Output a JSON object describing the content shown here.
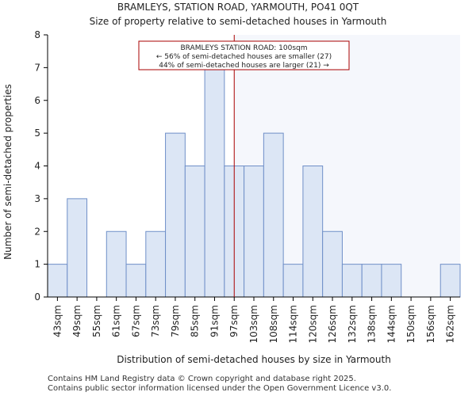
{
  "chart_data": {
    "type": "bar",
    "title": "BRAMLEYS, STATION ROAD, YARMOUTH, PO41 0QT",
    "subtitle": "Size of property relative to semi-detached houses in Yarmouth",
    "xlabel": "Distribution of semi-detached houses by size in Yarmouth",
    "ylabel": "Number of semi-detached properties",
    "categories": [
      "43sqm",
      "49sqm",
      "55sqm",
      "61sqm",
      "67sqm",
      "73sqm",
      "79sqm",
      "85sqm",
      "91sqm",
      "97sqm",
      "103sqm",
      "108sqm",
      "114sqm",
      "120sqm",
      "126sqm",
      "132sqm",
      "138sqm",
      "144sqm",
      "150sqm",
      "156sqm",
      "162sqm"
    ],
    "values": [
      1,
      3,
      0,
      2,
      1,
      2,
      5,
      4,
      7,
      4,
      4,
      5,
      1,
      4,
      2,
      1,
      1,
      1,
      0,
      0,
      1
    ],
    "ylim": [
      0,
      8
    ],
    "yticks": [
      0,
      1,
      2,
      3,
      4,
      5,
      6,
      7,
      8
    ],
    "grid": false,
    "colors": {
      "bar_fill": "#dce6f5",
      "bar_stroke": "#6f8fc8",
      "marker_line": "#aa0000",
      "annotation_border": "#aa0000",
      "axis": "#000000"
    },
    "marker": {
      "value_sqm": 100,
      "position_category_index": 9.5
    },
    "annotation": {
      "line1": "BRAMLEYS STATION ROAD: 100sqm",
      "line2": "← 56% of semi-detached houses are smaller (27)",
      "line3": "44% of semi-detached houses are larger (21) →"
    }
  },
  "footer": {
    "line1": "Contains HM Land Registry data © Crown copyright and database right 2025.",
    "line2": "Contains public sector information licensed under the Open Government Licence v3.0."
  }
}
